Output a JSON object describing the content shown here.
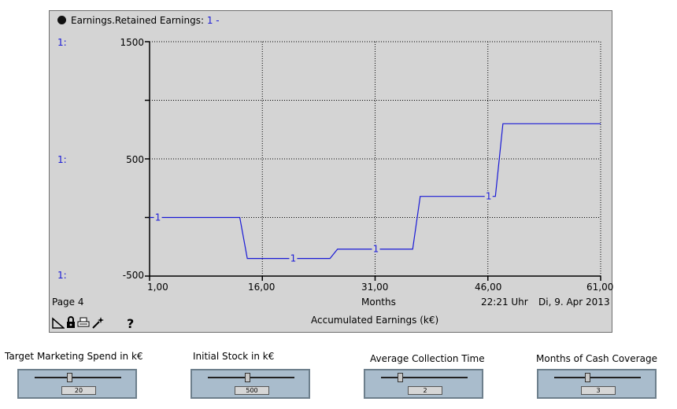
{
  "graph": {
    "title_prefix": "Earnings.Retained Earnings: ",
    "series_tag": "1 -",
    "y_axis_tags": [
      "1:",
      "1:",
      "1:"
    ],
    "y_ticks": [
      "1500",
      "500",
      "-500"
    ],
    "x_ticks": [
      "1,00",
      "16,00",
      "31,00",
      "46,00",
      "61,00"
    ],
    "x_unit": "Months",
    "page_label": "Page 4",
    "time": "22:21 Uhr",
    "date": "Di, 9. Apr 2013",
    "caption": "Accumulated Earnings (k€)",
    "series_marker": "1",
    "line_color": "#1a1ad6",
    "icons": [
      "page-corner-icon",
      "lock-icon",
      "print-icon",
      "magic-wand-icon",
      "help-icon"
    ],
    "help_glyph": "?"
  },
  "chart_data": {
    "type": "line",
    "title": "Earnings.Retained Earnings",
    "xlabel": "Months",
    "ylabel": "",
    "xlim": [
      1,
      61
    ],
    "ylim": [
      -500,
      1500
    ],
    "x_ticks": [
      1,
      16,
      31,
      46,
      61
    ],
    "y_ticks": [
      -500,
      500,
      1500
    ],
    "grid": true,
    "series": [
      {
        "name": "1",
        "x": [
          1,
          13,
          14,
          25,
          26,
          36,
          37,
          47,
          48,
          61
        ],
        "y": [
          0,
          0,
          -350,
          -350,
          -270,
          -270,
          180,
          180,
          800,
          800
        ]
      }
    ]
  },
  "sliders": [
    {
      "label": "Target Marketing Spend in k€",
      "value": "20",
      "fraction": 0.4
    },
    {
      "label": "Initial Stock in k€",
      "value": "500",
      "fraction": 0.45
    },
    {
      "label": "Average Collection Time",
      "value": "2",
      "fraction": 0.22
    },
    {
      "label": "Months of Cash Coverage",
      "value": "3",
      "fraction": 0.38
    }
  ]
}
